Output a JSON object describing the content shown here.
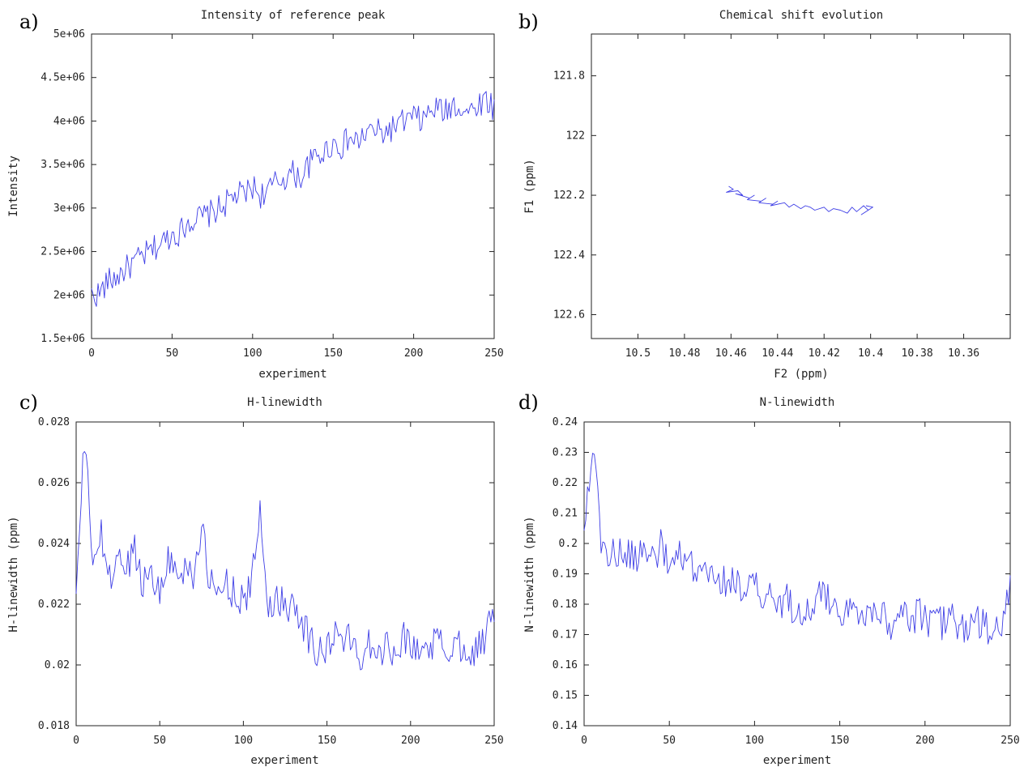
{
  "colors": {
    "series": "#3f3fe6",
    "axis": "#222222"
  },
  "chart_data": [
    {
      "id": "a",
      "panel_letter": "a)",
      "type": "line",
      "title": "Intensity of reference peak",
      "xlabel": "experiment",
      "ylabel": "Intensity",
      "xlim": [
        0,
        250
      ],
      "ylim": [
        1500000,
        5000000
      ],
      "x_ticks": [
        0,
        50,
        100,
        150,
        200,
        250
      ],
      "x_tick_labels": [
        "0",
        "50",
        "100",
        "150",
        "200",
        "250"
      ],
      "y_ticks": [
        1500000,
        2000000,
        2500000,
        3000000,
        3500000,
        4000000,
        4500000,
        5000000
      ],
      "y_tick_labels": [
        "1.5e+06",
        "2e+06",
        "2.5e+06",
        "3e+06",
        "3.5e+06",
        "4e+06",
        "4.5e+06",
        "5e+06"
      ],
      "grid": false,
      "series": [
        {
          "x_start": 0,
          "x_step": 5,
          "values": [
            2000000,
            2020000,
            2150000,
            2200000,
            2280000,
            2350000,
            2420000,
            2480000,
            2550000,
            2620000,
            2700000,
            2720000,
            2850000,
            2880000,
            2900000,
            2950000,
            3000000,
            3080000,
            3150000,
            3150000,
            3250000,
            3150000,
            3200000,
            3300000,
            3350000,
            3400000,
            3350000,
            3500000,
            3600000,
            3650000,
            3750000,
            3700000,
            3800000,
            3750000,
            3850000,
            3900000,
            3850000,
            3900000,
            3950000,
            4000000,
            4050000,
            4000000,
            4100000,
            4150000,
            4100000,
            4200000,
            4150000,
            4100000,
            4200000,
            4250000,
            4150000
          ]
        }
      ]
    },
    {
      "id": "b",
      "panel_letter": "b)",
      "type": "line",
      "title": "Chemical shift evolution",
      "xlabel": "F2 (ppm)",
      "ylabel": "F1 (ppm)",
      "x_reversed": true,
      "y_reversed": true,
      "xlim": [
        10.52,
        10.34
      ],
      "ylim": [
        121.66,
        122.68
      ],
      "x_ticks": [
        10.5,
        10.48,
        10.46,
        10.44,
        10.42,
        10.4,
        10.38,
        10.36
      ],
      "x_tick_labels": [
        "10.5",
        "10.48",
        "10.46",
        "10.44",
        "10.42",
        "10.4",
        "10.38",
        "10.36"
      ],
      "y_ticks": [
        121.8,
        122,
        122.2,
        122.4,
        122.6
      ],
      "y_tick_labels": [
        "121.8",
        "122",
        "122.2",
        "122.4",
        "122.6"
      ],
      "grid": false,
      "series": [
        {
          "x": [
            10.461,
            10.459,
            10.462,
            10.457,
            10.455,
            10.458,
            10.452,
            10.45,
            10.453,
            10.447,
            10.445,
            10.448,
            10.442,
            10.44,
            10.443,
            10.437,
            10.435,
            10.433,
            10.43,
            10.428,
            10.426,
            10.424,
            10.42,
            10.418,
            10.416,
            10.413,
            10.41,
            10.408,
            10.406,
            10.403,
            10.401,
            10.404,
            10.399,
            10.402
          ],
          "y": [
            122.17,
            122.18,
            122.19,
            122.185,
            122.2,
            122.195,
            122.21,
            122.2,
            122.215,
            122.22,
            122.21,
            122.225,
            122.23,
            122.22,
            122.235,
            122.225,
            122.24,
            122.23,
            122.245,
            122.235,
            122.24,
            122.25,
            122.24,
            122.255,
            122.245,
            122.25,
            122.26,
            122.24,
            122.255,
            122.235,
            122.25,
            122.265,
            122.24,
            122.235
          ]
        }
      ]
    },
    {
      "id": "c",
      "panel_letter": "c)",
      "type": "line",
      "title": "H-linewidth",
      "xlabel": "experiment",
      "ylabel": "H-linewidth (ppm)",
      "xlim": [
        0,
        250
      ],
      "ylim": [
        0.018,
        0.028
      ],
      "x_ticks": [
        0,
        50,
        100,
        150,
        200,
        250
      ],
      "x_tick_labels": [
        "0",
        "50",
        "100",
        "150",
        "200",
        "250"
      ],
      "y_ticks": [
        0.018,
        0.02,
        0.022,
        0.024,
        0.026,
        0.028
      ],
      "y_tick_labels": [
        "0.018",
        "0.02",
        "0.022",
        "0.024",
        "0.026",
        "0.028"
      ],
      "grid": false,
      "series": [
        {
          "x_start": 0,
          "x_step": 5,
          "values": [
            0.0223,
            0.0274,
            0.0235,
            0.0242,
            0.0228,
            0.0236,
            0.0231,
            0.0239,
            0.0226,
            0.0233,
            0.0222,
            0.0237,
            0.0229,
            0.0232,
            0.0231,
            0.0244,
            0.0227,
            0.0222,
            0.0228,
            0.0223,
            0.0221,
            0.0226,
            0.0251,
            0.0218,
            0.0223,
            0.0219,
            0.0222,
            0.0215,
            0.0208,
            0.0204,
            0.0206,
            0.021,
            0.0209,
            0.0207,
            0.0203,
            0.0208,
            0.0206,
            0.0205,
            0.0206,
            0.0209,
            0.0207,
            0.0204,
            0.0206,
            0.0208,
            0.0205,
            0.0206,
            0.0207,
            0.0205,
            0.0206,
            0.0208,
            0.022
          ]
        }
      ]
    },
    {
      "id": "d",
      "panel_letter": "d)",
      "type": "line",
      "title": "N-linewidth",
      "xlabel": "experiment",
      "ylabel": "N-linewidth (ppm)",
      "xlim": [
        0,
        250
      ],
      "ylim": [
        0.14,
        0.24
      ],
      "x_ticks": [
        0,
        50,
        100,
        150,
        200,
        250
      ],
      "x_tick_labels": [
        "0",
        "50",
        "100",
        "150",
        "200",
        "250"
      ],
      "y_ticks": [
        0.14,
        0.15,
        0.16,
        0.17,
        0.18,
        0.19,
        0.2,
        0.21,
        0.22,
        0.23,
        0.24
      ],
      "y_tick_labels": [
        "0.14",
        "0.15",
        "0.16",
        "0.17",
        "0.18",
        "0.19",
        "0.2",
        "0.21",
        "0.22",
        "0.23",
        "0.24"
      ],
      "grid": false,
      "series": [
        {
          "x_start": 0,
          "x_step": 5,
          "values": [
            0.205,
            0.234,
            0.201,
            0.196,
            0.197,
            0.195,
            0.196,
            0.197,
            0.196,
            0.199,
            0.192,
            0.196,
            0.191,
            0.193,
            0.189,
            0.188,
            0.188,
            0.186,
            0.189,
            0.184,
            0.186,
            0.181,
            0.183,
            0.18,
            0.181,
            0.178,
            0.178,
            0.179,
            0.184,
            0.18,
            0.179,
            0.178,
            0.177,
            0.178,
            0.176,
            0.179,
            0.174,
            0.178,
            0.174,
            0.177,
            0.175,
            0.175,
            0.174,
            0.176,
            0.173,
            0.172,
            0.174,
            0.172,
            0.171,
            0.17,
            0.188
          ]
        }
      ]
    }
  ]
}
